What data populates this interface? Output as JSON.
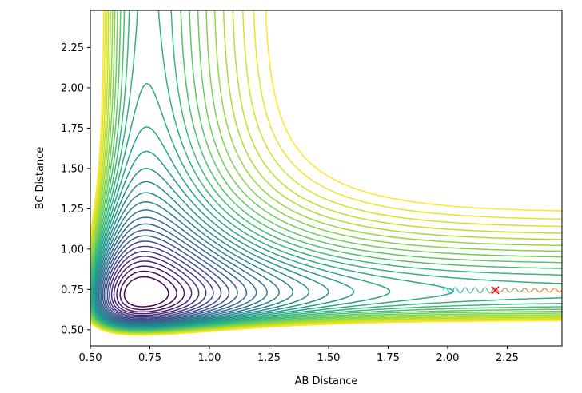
{
  "chart_data": {
    "type": "contour",
    "title": "",
    "xlabel": "AB Distance",
    "ylabel": "BC Distance",
    "xlim": [
      0.5,
      2.48
    ],
    "ylim": [
      0.4,
      2.48
    ],
    "xticks": [
      0.5,
      0.75,
      1.0,
      1.25,
      1.5,
      1.75,
      2.0,
      2.25
    ],
    "xtick_labels": [
      "0.50",
      "0.75",
      "1.00",
      "1.25",
      "1.50",
      "1.75",
      "2.00",
      "2.25"
    ],
    "yticks": [
      0.5,
      0.75,
      1.0,
      1.25,
      1.5,
      1.75,
      2.0,
      2.25
    ],
    "ytick_labels": [
      "0.50",
      "0.75",
      "1.00",
      "1.25",
      "1.50",
      "1.75",
      "2.00",
      "2.25"
    ],
    "grid": false,
    "legend": "none",
    "colormap": "viridis",
    "colors": {
      "viridis": [
        "#440154",
        "#482878",
        "#3e4989",
        "#31688e",
        "#26828e",
        "#1f9e89",
        "#35b779",
        "#6ece58",
        "#b5de2b",
        "#fde725"
      ],
      "trajectory_start": "#17becf",
      "trajectory_end": "#ff7f0e",
      "marker": "#ff0000"
    },
    "trajectory": {
      "x_start": 1.98,
      "x_end": 2.48,
      "y_center": 0.745,
      "amplitude": 0.012,
      "periods": 12
    },
    "marker": {
      "symbol": "x",
      "x": 2.2,
      "y": 0.745
    }
  }
}
